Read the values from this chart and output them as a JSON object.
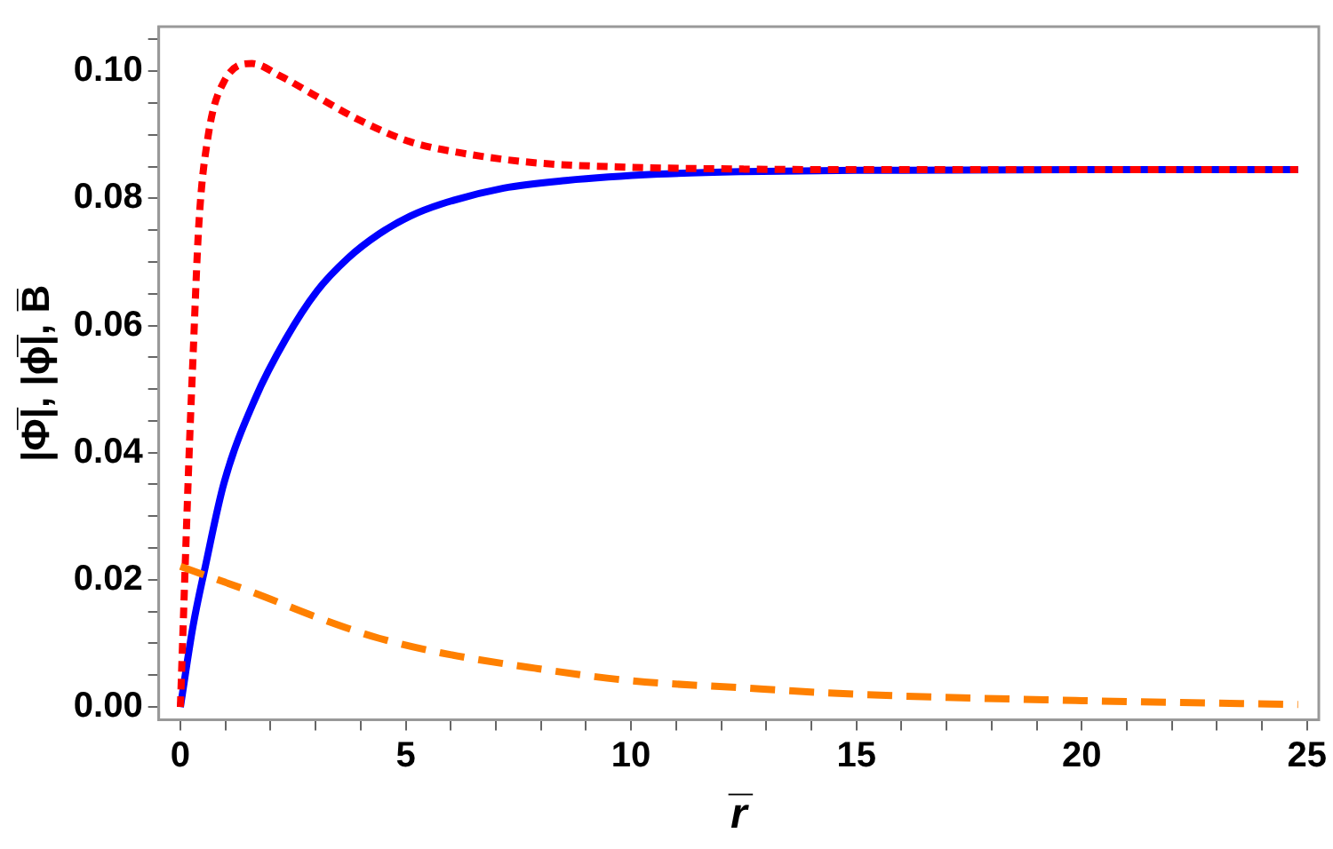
{
  "chart_data": {
    "type": "line",
    "xlabel": "r̅",
    "ylabel": "|Φ̅|, |ϕ̅|, B̅",
    "xlim": [
      -0.48,
      25.26
    ],
    "ylim": [
      -0.002,
      0.107
    ],
    "xticks": [
      0,
      {
        "value": 1,
        "label": null
      },
      {
        "value": 2,
        "label": null
      },
      {
        "value": 3,
        "label": null
      },
      {
        "value": 4,
        "label": null
      },
      5,
      {
        "value": 6,
        "label": null
      },
      {
        "value": 7,
        "label": null
      },
      {
        "value": 8,
        "label": null
      },
      {
        "value": 9,
        "label": null
      },
      10,
      {
        "value": 11,
        "label": null
      },
      {
        "value": 12,
        "label": null
      },
      {
        "value": 13,
        "label": null
      },
      {
        "value": 14,
        "label": null
      },
      15,
      {
        "value": 16,
        "label": null
      },
      {
        "value": 17,
        "label": null
      },
      {
        "value": 18,
        "label": null
      },
      {
        "value": 19,
        "label": null
      },
      20,
      {
        "value": 21,
        "label": null
      },
      {
        "value": 22,
        "label": null
      },
      {
        "value": 23,
        "label": null
      },
      {
        "value": 24,
        "label": null
      },
      25
    ],
    "yticks": [
      {
        "value": 0,
        "label": "0.00"
      },
      {
        "value": 0.005,
        "label": null
      },
      {
        "value": 0.01,
        "label": null
      },
      {
        "value": 0.015,
        "label": null
      },
      {
        "value": 0.02,
        "label": "0.02"
      },
      {
        "value": 0.025,
        "label": null
      },
      {
        "value": 0.03,
        "label": null
      },
      {
        "value": 0.035,
        "label": null
      },
      {
        "value": 0.04,
        "label": "0.04"
      },
      {
        "value": 0.045,
        "label": null
      },
      {
        "value": 0.05,
        "label": null
      },
      {
        "value": 0.055,
        "label": null
      },
      {
        "value": 0.06,
        "label": "0.06"
      },
      {
        "value": 0.065,
        "label": null
      },
      {
        "value": 0.07,
        "label": null
      },
      {
        "value": 0.075,
        "label": null
      },
      {
        "value": 0.08,
        "label": "0.08"
      },
      {
        "value": 0.085,
        "label": null
      },
      {
        "value": 0.09,
        "label": null
      },
      {
        "value": 0.095,
        "label": null
      },
      {
        "value": 0.1,
        "label": "0.10"
      },
      {
        "value": 0.105,
        "label": null
      }
    ],
    "grid": false,
    "legend": false,
    "marker": "none",
    "series": [
      {
        "color": "#0000ff",
        "line_style": "solid",
        "x": [
          0,
          0.28,
          0.55,
          0.97,
          1.66,
          2.34,
          3.03,
          3.72,
          4.41,
          5.1,
          5.79,
          7.17,
          8.55,
          10.6,
          12.5,
          15,
          20,
          24.8
        ],
        "values": [
          0,
          0.0127,
          0.022,
          0.0353,
          0.0485,
          0.0579,
          0.0654,
          0.0706,
          0.0744,
          0.0772,
          0.0791,
          0.0816,
          0.0828,
          0.0838,
          0.0842,
          0.0844,
          0.0845,
          0.0845
        ]
      },
      {
        "color": "#ff0000",
        "line_style": "dotted",
        "x": [
          0,
          0.2,
          0.28,
          0.41,
          0.62,
          0.97,
          1.59,
          2.2,
          3.03,
          4,
          5.1,
          6.34,
          7.86,
          9.9,
          12.5,
          15,
          20,
          24.8
        ],
        "values": [
          0,
          0.041,
          0.055,
          0.076,
          0.09,
          0.0984,
          0.1012,
          0.0993,
          0.096,
          0.0922,
          0.0889,
          0.087,
          0.0856,
          0.0849,
          0.0846,
          0.0845,
          0.0845,
          0.0845
        ]
      },
      {
        "color": "#ff8000",
        "line_style": "dashed",
        "x": [
          0,
          1.66,
          3.03,
          4.41,
          5.79,
          7.86,
          9.9,
          12.5,
          15,
          20,
          24.8
        ],
        "values": [
          0.0221,
          0.0179,
          0.0141,
          0.0108,
          0.0085,
          0.0061,
          0.0042,
          0.003,
          0.002,
          0.001,
          0.0004
        ]
      }
    ]
  }
}
